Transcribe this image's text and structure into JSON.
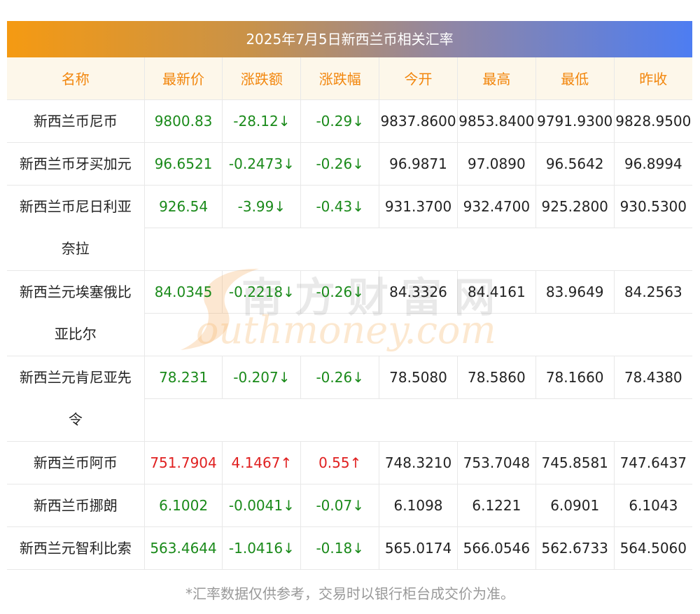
{
  "title": "2025年7月5日新西兰币相关汇率",
  "headers": [
    "名称",
    "最新价",
    "涨跌额",
    "涨跌幅",
    "今开",
    "最高",
    "最低",
    "昨收"
  ],
  "rows": [
    {
      "name_lines": [
        "新西兰币尼币"
      ],
      "latest": "9800.83",
      "change": "-28.12↓",
      "pct": "-0.29↓",
      "open": "9837.8600",
      "high": "9853.8400",
      "low": "9791.9300",
      "prev": "9828.9500",
      "dir": "down"
    },
    {
      "name_lines": [
        "新西兰币牙买加元"
      ],
      "latest": "96.6521",
      "change": "-0.2473↓",
      "pct": "-0.26↓",
      "open": "96.9871",
      "high": "97.0890",
      "low": "96.5642",
      "prev": "96.8994",
      "dir": "down"
    },
    {
      "name_lines": [
        "新西兰币尼日利亚",
        "奈拉"
      ],
      "latest": "926.54",
      "change": "-3.99↓",
      "pct": "-0.43↓",
      "open": "931.3700",
      "high": "932.4700",
      "low": "925.2800",
      "prev": "930.5300",
      "dir": "down"
    },
    {
      "name_lines": [
        "新西兰元埃塞俄比",
        "亚比尔"
      ],
      "latest": "84.0345",
      "change": "-0.2218↓",
      "pct": "-0.26↓",
      "open": "84.3326",
      "high": "84.4161",
      "low": "83.9649",
      "prev": "84.2563",
      "dir": "down"
    },
    {
      "name_lines": [
        "新西兰元肯尼亚先",
        "令"
      ],
      "latest": "78.231",
      "change": "-0.207↓",
      "pct": "-0.26↓",
      "open": "78.5080",
      "high": "78.5860",
      "low": "78.1660",
      "prev": "78.4380",
      "dir": "down"
    },
    {
      "name_lines": [
        "新西兰币阿币"
      ],
      "latest": "751.7904",
      "change": "4.1467↑",
      "pct": "0.55↑",
      "open": "748.3210",
      "high": "753.7048",
      "low": "745.8581",
      "prev": "747.6437",
      "dir": "up"
    },
    {
      "name_lines": [
        "新西兰币挪朗"
      ],
      "latest": "6.1002",
      "change": "-0.0041↓",
      "pct": "-0.07↓",
      "open": "6.1098",
      "high": "6.1221",
      "low": "6.0901",
      "prev": "6.1043",
      "dir": "down"
    },
    {
      "name_lines": [
        "新西兰元智利比索"
      ],
      "latest": "563.4644",
      "change": "-1.0416↓",
      "pct": "-0.18↓",
      "open": "565.0174",
      "high": "566.0546",
      "low": "562.6733",
      "prev": "564.5060",
      "dir": "down"
    }
  ],
  "watermark": {
    "cn": "南方财富网",
    "en": "outhmoney.com"
  },
  "footnote": "*汇率数据仅供参考，交易时以银行柜台成交价为准。",
  "colors": {
    "header_text": "#f2860c",
    "header_bg": "#fdf7ea",
    "down": "#1a8a1a",
    "up": "#e02020",
    "gradient_start": "#f59a12",
    "gradient_end": "#4d7df2"
  }
}
